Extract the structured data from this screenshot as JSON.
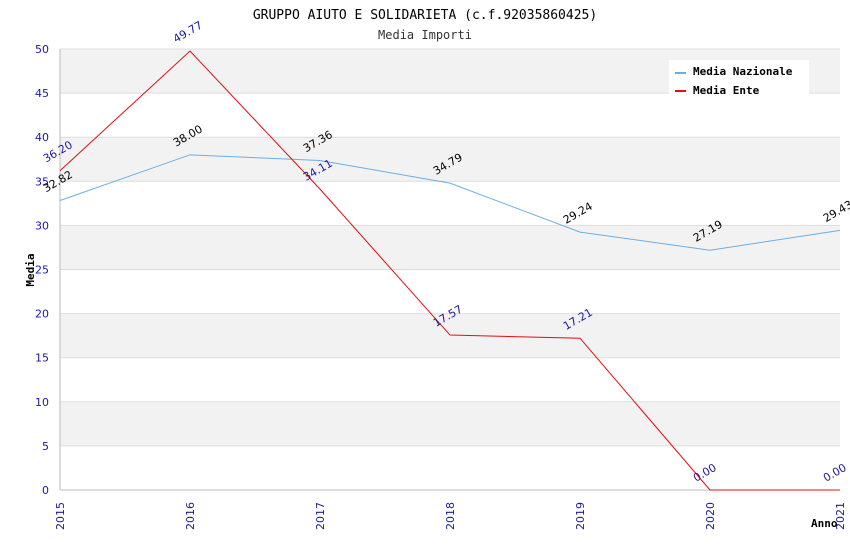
{
  "chart_data": {
    "type": "line",
    "title": "GRUPPO AIUTO E SOLIDARIETA (c.f.92035860425)",
    "subtitle": "Media Importi",
    "xlabel": "Anno",
    "ylabel": "Media",
    "categories": [
      "2015",
      "2016",
      "2017",
      "2018",
      "2019",
      "2020",
      "2021"
    ],
    "ylim": [
      0,
      50
    ],
    "yticks": [
      "0",
      "5",
      "10",
      "15",
      "20",
      "25",
      "30",
      "35",
      "40",
      "45",
      "50"
    ],
    "grid": true,
    "legend_position": "top-right",
    "series": [
      {
        "name": "Media Nazionale",
        "color": "#6aaee6",
        "label_color": "#000000",
        "values": [
          32.82,
          38.0,
          37.36,
          34.79,
          29.24,
          27.19,
          29.43
        ],
        "labels": [
          "32.82",
          "38.00",
          "37.36",
          "34.79",
          "29.24",
          "27.19",
          "29.43"
        ]
      },
      {
        "name": "Media Ente",
        "color": "#e01010",
        "label_color": "#1a1aa0",
        "values": [
          36.2,
          49.77,
          34.11,
          17.57,
          17.21,
          0.0,
          0.0
        ],
        "labels": [
          "36.20",
          "49.77",
          "34.11",
          "17.57",
          "17.21",
          "0.00",
          "0.00"
        ]
      }
    ]
  }
}
